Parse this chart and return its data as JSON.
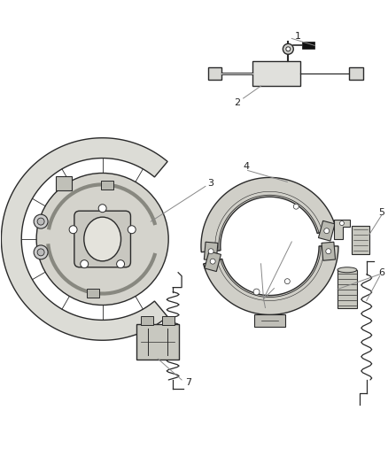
{
  "bg_color": "#ffffff",
  "line_color": "#2a2a2a",
  "label_line_color": "#888888",
  "label_color": "#222222",
  "figsize": [
    4.38,
    5.33
  ],
  "dpi": 100,
  "shoe_color": "#d0cfc8",
  "disc_outer_color": "#e8e8e4",
  "disc_inner_color": "#d8d7d0",
  "part_color": "#c8c8c0"
}
